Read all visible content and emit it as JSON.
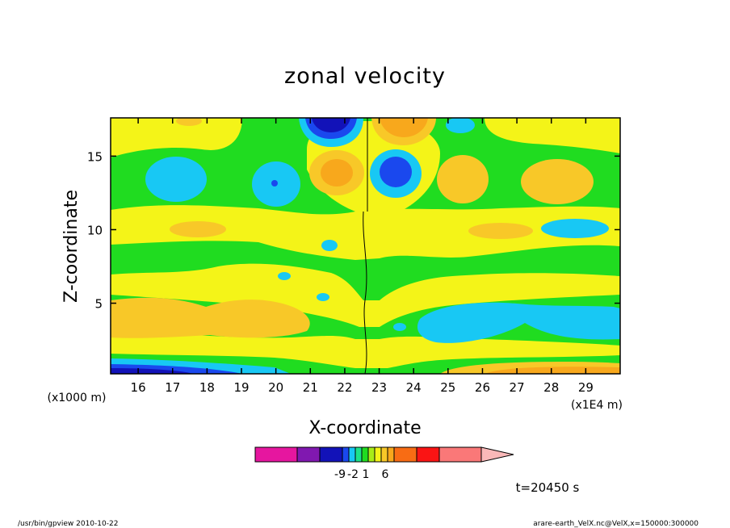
{
  "chart_data": {
    "type": "heatmap",
    "title": "zonal velocity",
    "xlabel": "X-coordinate",
    "ylabel": "Z-coordinate",
    "x_unit_left": "(x1000 m)",
    "x_unit_right": "(x1E4 m)",
    "xlim": [
      15.2,
      30.0
    ],
    "ylim": [
      0.2,
      17.6
    ],
    "x_ticks": [
      "16",
      "17",
      "18",
      "19",
      "20",
      "21",
      "22",
      "23",
      "24",
      "25",
      "26",
      "27",
      "28",
      "29"
    ],
    "y_ticks": [
      "5",
      "10",
      "15"
    ],
    "colorbar": {
      "colors": [
        "#e6169f",
        "#8018b0",
        "#1212b8",
        "#1a48ee",
        "#18c8f4",
        "#1ce28a",
        "#20dc20",
        "#a8ec18",
        "#f4f418",
        "#f8c828",
        "#f8a81c",
        "#f86c14",
        "#fa1414",
        "#fa7878",
        "#fab8b8"
      ],
      "tick_labels": [
        "-9",
        "-2",
        "1",
        "6"
      ]
    },
    "time_label": "t=20450 s",
    "footer_left": "/usr/bin/gpview   2010-10-22",
    "footer_right": "arare-earth_VelX.nc@VelX,x=150000:300000"
  }
}
